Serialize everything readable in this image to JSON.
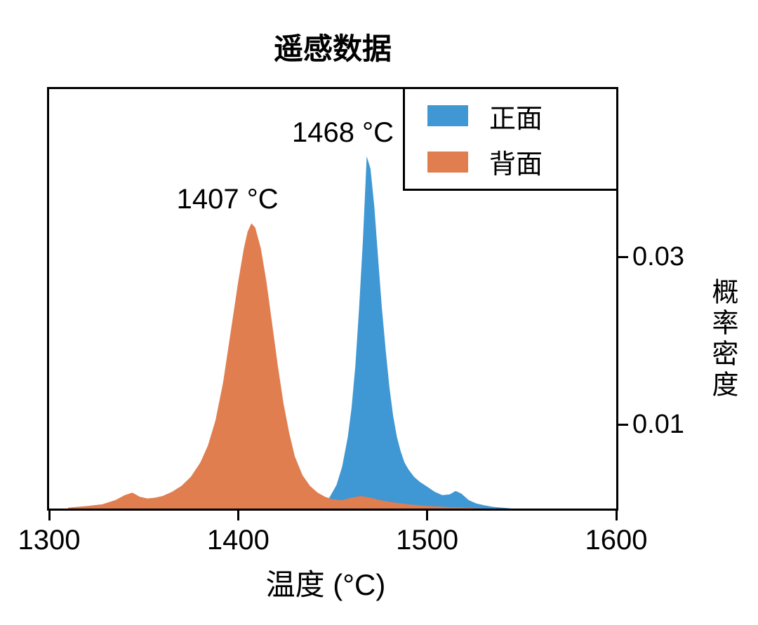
{
  "chart_data": {
    "type": "area",
    "title": "遥感数据",
    "xlabel": "温度 (°C)",
    "ylabel": "概率密度",
    "xlim": [
      1300,
      1600
    ],
    "ylim": [
      0,
      0.05
    ],
    "xticks": [
      1300,
      1400,
      1500,
      1600
    ],
    "xtick_labels": [
      "1300",
      "1400",
      "1500",
      "1600"
    ],
    "yticks": [
      0.01,
      0.03
    ],
    "ytick_labels": [
      "0.01",
      "0.03"
    ],
    "grid": false,
    "legend_position": "upper right",
    "series": [
      {
        "name": "正面",
        "key": "front",
        "color": "#3F97D4",
        "peak_label": "1468 °C",
        "peak_temperature_c": 1468,
        "points": [
          [
            1435,
            0
          ],
          [
            1440,
            0.0002
          ],
          [
            1444,
            0.0005
          ],
          [
            1448,
            0.0012
          ],
          [
            1452,
            0.0028
          ],
          [
            1455,
            0.005
          ],
          [
            1458,
            0.0085
          ],
          [
            1460,
            0.012
          ],
          [
            1462,
            0.017
          ],
          [
            1464,
            0.024
          ],
          [
            1466,
            0.032
          ],
          [
            1468,
            0.042
          ],
          [
            1470,
            0.0405
          ],
          [
            1472,
            0.036
          ],
          [
            1474,
            0.03
          ],
          [
            1476,
            0.024
          ],
          [
            1478,
            0.019
          ],
          [
            1480,
            0.0145
          ],
          [
            1482,
            0.011
          ],
          [
            1484,
            0.0085
          ],
          [
            1486,
            0.0068
          ],
          [
            1488,
            0.0055
          ],
          [
            1490,
            0.0047
          ],
          [
            1493,
            0.0038
          ],
          [
            1496,
            0.0032
          ],
          [
            1500,
            0.0026
          ],
          [
            1504,
            0.002
          ],
          [
            1508,
            0.0016
          ],
          [
            1512,
            0.0017
          ],
          [
            1515,
            0.0021
          ],
          [
            1518,
            0.0018
          ],
          [
            1522,
            0.001
          ],
          [
            1526,
            0.0006
          ],
          [
            1530,
            0.0004
          ],
          [
            1535,
            0.0002
          ],
          [
            1540,
            0.0001
          ],
          [
            1545,
            0
          ]
        ]
      },
      {
        "name": "背面",
        "key": "back",
        "color": "#E07E50",
        "peak_label": "1407 °C",
        "peak_temperature_c": 1407,
        "points": [
          [
            1310,
            0.0001
          ],
          [
            1320,
            0.0003
          ],
          [
            1328,
            0.0005
          ],
          [
            1335,
            0.001
          ],
          [
            1340,
            0.0016
          ],
          [
            1344,
            0.0019
          ],
          [
            1348,
            0.0014
          ],
          [
            1352,
            0.0012
          ],
          [
            1356,
            0.0013
          ],
          [
            1360,
            0.0015
          ],
          [
            1365,
            0.002
          ],
          [
            1370,
            0.0027
          ],
          [
            1375,
            0.0038
          ],
          [
            1380,
            0.0055
          ],
          [
            1384,
            0.0075
          ],
          [
            1388,
            0.0105
          ],
          [
            1392,
            0.015
          ],
          [
            1396,
            0.021
          ],
          [
            1400,
            0.027
          ],
          [
            1403,
            0.031
          ],
          [
            1405,
            0.033
          ],
          [
            1407,
            0.034
          ],
          [
            1409,
            0.0335
          ],
          [
            1412,
            0.031
          ],
          [
            1415,
            0.027
          ],
          [
            1418,
            0.022
          ],
          [
            1421,
            0.017
          ],
          [
            1424,
            0.0125
          ],
          [
            1427,
            0.009
          ],
          [
            1430,
            0.0062
          ],
          [
            1434,
            0.004
          ],
          [
            1438,
            0.0027
          ],
          [
            1442,
            0.0019
          ],
          [
            1446,
            0.0014
          ],
          [
            1450,
            0.0011
          ],
          [
            1455,
            0.001
          ],
          [
            1460,
            0.0013
          ],
          [
            1465,
            0.0015
          ],
          [
            1470,
            0.0013
          ],
          [
            1475,
            0.001
          ],
          [
            1480,
            0.0008
          ],
          [
            1490,
            0.0005
          ],
          [
            1500,
            0.0003
          ],
          [
            1510,
            0.0002
          ],
          [
            1520,
            0.0001
          ],
          [
            1530,
            0
          ]
        ]
      }
    ]
  }
}
